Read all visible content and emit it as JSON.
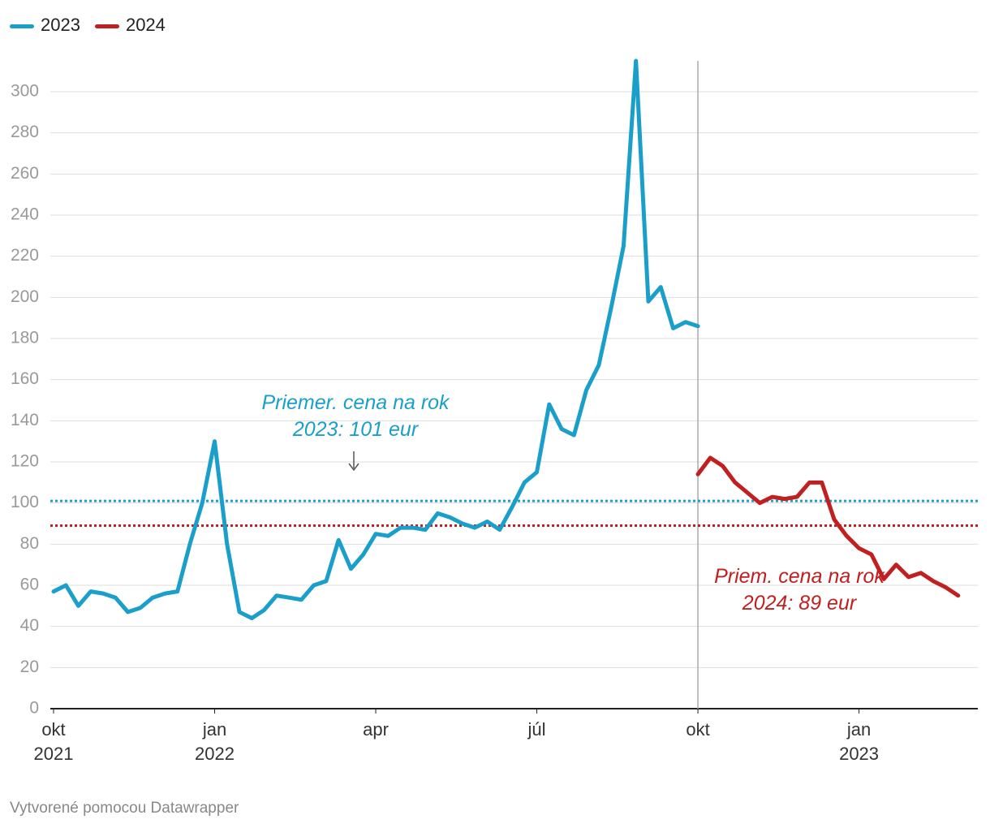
{
  "chart_data": {
    "type": "line",
    "series": [
      {
        "name": "2023",
        "color": "#1a9fcb",
        "values": [
          57,
          60,
          50,
          57,
          56,
          54,
          47,
          49,
          54,
          56,
          57,
          80,
          100,
          130,
          80,
          47,
          44,
          48,
          55,
          54,
          53,
          60,
          62,
          82,
          68,
          75,
          85,
          84,
          88,
          88,
          87,
          95,
          93,
          90,
          88,
          91,
          87,
          98,
          110,
          115,
          148,
          136,
          133,
          155,
          167,
          195,
          225,
          315,
          198,
          205,
          185,
          188,
          186,
          null,
          null,
          null,
          null,
          null,
          null,
          null,
          null,
          null,
          null,
          null,
          null,
          null,
          null,
          null,
          null,
          null,
          null,
          null,
          null,
          null
        ]
      },
      {
        "name": "2024",
        "color": "#c0201f",
        "values": [
          null,
          null,
          null,
          null,
          null,
          null,
          null,
          null,
          null,
          null,
          null,
          null,
          null,
          null,
          null,
          null,
          null,
          null,
          null,
          null,
          null,
          null,
          null,
          null,
          null,
          null,
          null,
          null,
          null,
          null,
          null,
          null,
          null,
          null,
          null,
          null,
          null,
          null,
          null,
          null,
          null,
          null,
          null,
          null,
          null,
          null,
          null,
          null,
          null,
          null,
          null,
          null,
          114,
          122,
          118,
          110,
          105,
          100,
          103,
          102,
          103,
          110,
          110,
          92,
          84,
          78,
          75,
          63,
          70,
          64,
          66,
          62,
          59,
          55
        ]
      }
    ],
    "xlim": [
      0,
      74
    ],
    "xticks": [
      {
        "value": 0,
        "label": "okt\n2021"
      },
      {
        "value": 13,
        "label": "jan\n2022"
      },
      {
        "value": 26,
        "label": "apr"
      },
      {
        "value": 39,
        "label": "júl"
      },
      {
        "value": 52,
        "label": "okt"
      },
      {
        "value": 65,
        "label": "jan\n2023"
      }
    ],
    "ylim": [
      0,
      300
    ],
    "yticks": [
      0,
      20,
      40,
      60,
      80,
      100,
      120,
      140,
      160,
      180,
      200,
      220,
      240,
      260,
      280,
      300
    ],
    "grid": true,
    "legend": "top-left",
    "reference_lines": [
      {
        "value": 101,
        "color": "#1a9fcb",
        "label": "Priemer. cena na rok\n2023: 101 eur"
      },
      {
        "value": 89,
        "color": "#c0201f",
        "label": "Priem. cena na rok\n2024: 89 eur"
      }
    ],
    "source": "Vytvorené pomocou Datawrapper"
  }
}
